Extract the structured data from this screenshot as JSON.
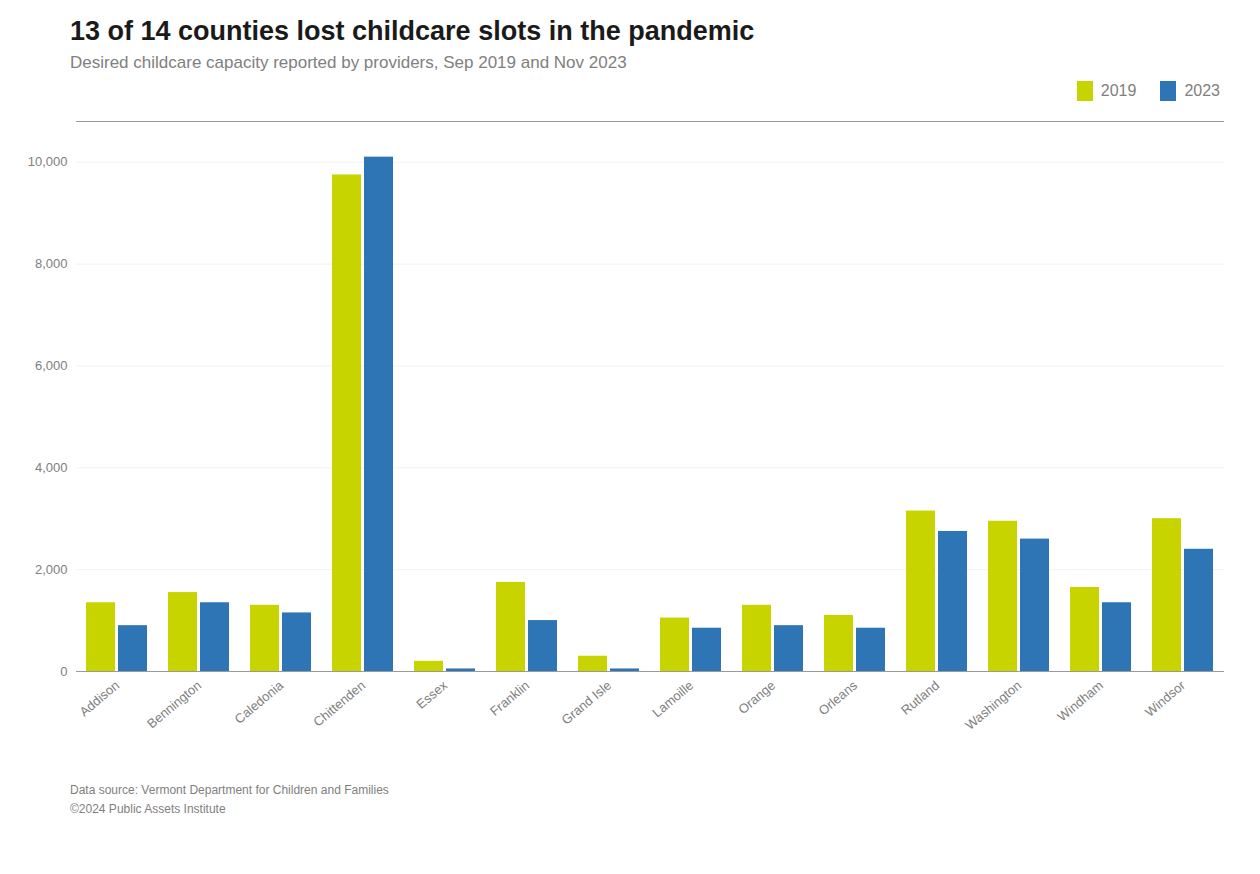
{
  "chart_data": {
    "type": "bar",
    "title": "13 of 14 counties lost childcare slots in the pandemic",
    "subtitle": "Desired childcare capacity reported by providers, Sep 2019 and Nov 2023",
    "categories": [
      "Addison",
      "Bennington",
      "Caledonia",
      "Chittenden",
      "Essex",
      "Franklin",
      "Grand Isle",
      "Lamoille",
      "Orange",
      "Orleans",
      "Rutland",
      "Washington",
      "Windham",
      "Windsor"
    ],
    "series": [
      {
        "name": "2019",
        "color": "#c8d400",
        "values": [
          1350,
          1550,
          1300,
          9750,
          200,
          1750,
          300,
          1050,
          1300,
          1100,
          3150,
          2950,
          1650,
          3000
        ]
      },
      {
        "name": "2023",
        "color": "#2e75b6",
        "values": [
          900,
          1350,
          1150,
          10100,
          50,
          1000,
          50,
          850,
          900,
          850,
          2750,
          2600,
          1350,
          2400
        ]
      }
    ],
    "ylim": [
      0,
      10800
    ],
    "yticks": [
      0,
      {
        "value": 2000,
        "label": "2,000"
      },
      {
        "value": 4000,
        "label": "4,000"
      },
      {
        "value": 6000,
        "label": "6,000"
      },
      {
        "value": 8000,
        "label": "8,000"
      },
      {
        "value": 10000,
        "label": "10,000"
      }
    ],
    "grid": true,
    "legend": "upper right",
    "annotations": [
      "Data source: Vermont Department for Children and Families",
      "©2024 Public Assets Institute"
    ]
  }
}
